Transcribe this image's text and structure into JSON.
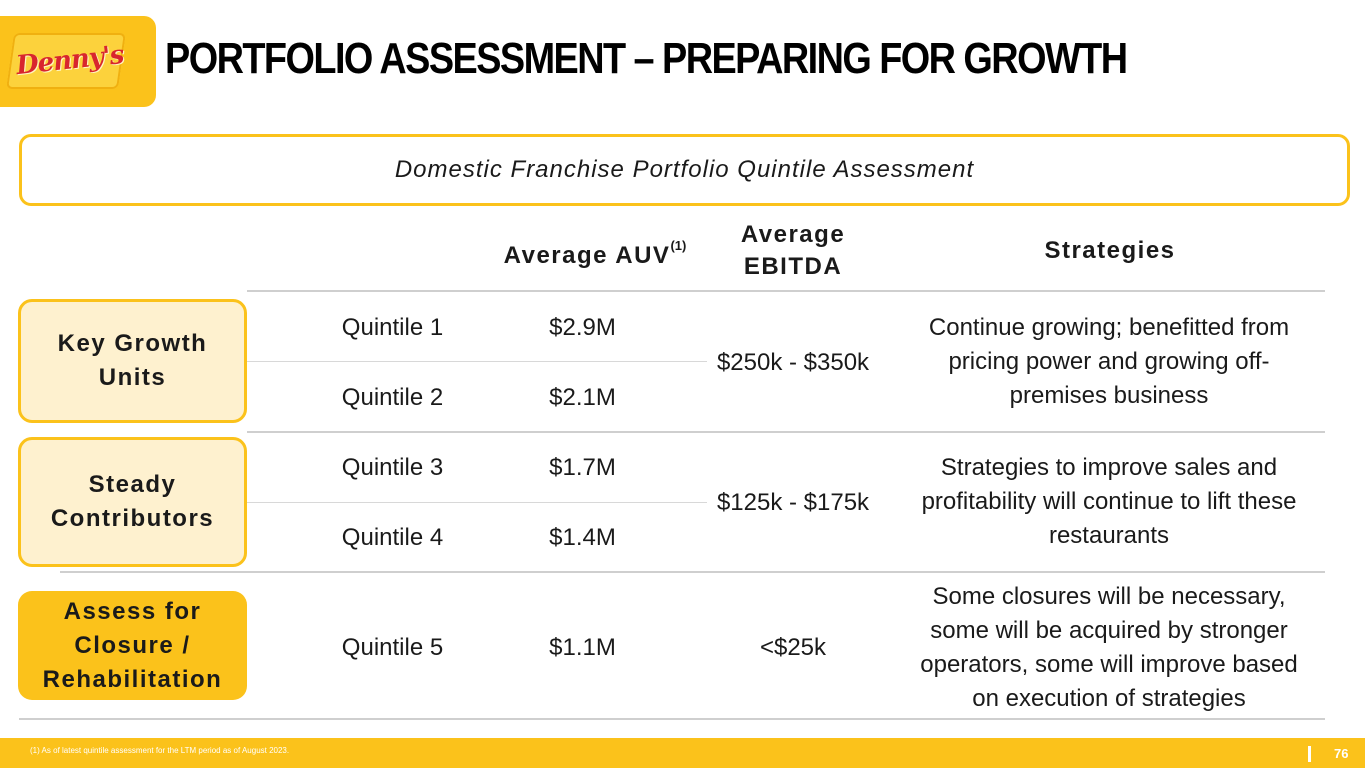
{
  "logo": {
    "text": "Denny's"
  },
  "title": "PORTFOLIO ASSESSMENT – PREPARING FOR GROWTH",
  "banner": "Domestic Franchise Portfolio Quintile Assessment",
  "headers": {
    "auv": "Average AUV",
    "auv_note": "(1)",
    "ebitda_line1": "Average",
    "ebitda_line2": "EBITDA",
    "strategies": "Strategies"
  },
  "groups": [
    {
      "label_line1": "Key Growth",
      "label_line2": "Units",
      "ebitda": "$250k - $350k",
      "strategy_lines": [
        "Continue growing; benefitted from",
        "pricing power and growing off-",
        "premises business"
      ],
      "rows": [
        {
          "quintile": "Quintile 1",
          "auv": "$2.9M"
        },
        {
          "quintile": "Quintile 2",
          "auv": "$2.1M"
        }
      ]
    },
    {
      "label_line1": "Steady",
      "label_line2": "Contributors",
      "ebitda": "$125k - $175k",
      "strategy_lines": [
        "Strategies to improve sales and",
        "profitability will continue to lift these",
        "restaurants"
      ],
      "rows": [
        {
          "quintile": "Quintile 3",
          "auv": "$1.7M"
        },
        {
          "quintile": "Quintile 4",
          "auv": "$1.4M"
        }
      ]
    },
    {
      "label_line1": "Assess for",
      "label_line2": "Closure /",
      "label_line3": "Rehabilitation",
      "ebitda": "<$25k",
      "strategy_lines": [
        "Some closures will be necessary,",
        "some will be acquired by stronger",
        "operators, some will improve based",
        "on execution of strategies"
      ],
      "rows": [
        {
          "quintile": "Quintile 5",
          "auv": "$1.1M"
        }
      ]
    }
  ],
  "footer": {
    "footnote": "(1) As of latest quintile assessment for the LTM period as of August 2023.",
    "page_number": "76"
  },
  "colors": {
    "brand_yellow": "#fbc21b",
    "label_fill": "#fef1cf",
    "logo_red": "#d8262e"
  }
}
